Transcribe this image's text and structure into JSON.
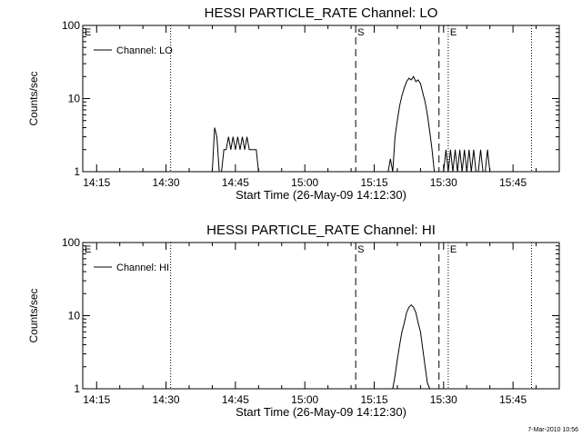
{
  "footer": {
    "date": "7-Mar-2010 10:56"
  },
  "chart_data": [
    {
      "type": "line",
      "title": "HESSI PARTICLE_RATE Channel: LO",
      "xlabel": "Start Time (26-May-09 14:12:30)",
      "ylabel": "Counts/sec",
      "ylog": true,
      "ylim": [
        1,
        100
      ],
      "xlim": [
        "14:12",
        "15:55"
      ],
      "x_ticks": [
        "14:15",
        "14:30",
        "14:45",
        "15:00",
        "15:15",
        "15:30",
        "15:45"
      ],
      "y_ticks": [
        "1",
        "10",
        "100"
      ],
      "legend": {
        "placement": "top-left",
        "label": "Channel: LO"
      },
      "markers": [
        {
          "label": "E",
          "time": "14:12",
          "style": "dotted"
        },
        {
          "label": "",
          "time": "14:31",
          "style": "dotted"
        },
        {
          "label": "S",
          "time": "15:11",
          "style": "dashed"
        },
        {
          "label": "",
          "time": "15:29",
          "style": "dashed"
        },
        {
          "label": "E",
          "time": "15:31",
          "style": "dotted"
        },
        {
          "label": "",
          "time": "15:49",
          "style": "dotted"
        }
      ],
      "series": [
        {
          "name": "Channel: LO",
          "x": [
            "14:40",
            "14:40.5",
            "14:41",
            "14:41.5",
            "14:42",
            "14:42.5",
            "14:43",
            "14:43.5",
            "14:44",
            "14:44.5",
            "14:45",
            "14:45.5",
            "14:46",
            "14:46.5",
            "14:47",
            "14:47.5",
            "14:48",
            "14:48.5",
            "14:49",
            "14:49.5",
            "14:50",
            "15:18",
            "15:18.5",
            "15:19",
            "15:19.5",
            "15:20",
            "15:20.5",
            "15:21",
            "15:21.5",
            "15:22",
            "15:22.5",
            "15:23",
            "15:23.5",
            "15:24",
            "15:24.5",
            "15:25",
            "15:25.5",
            "15:26",
            "15:26.5",
            "15:27",
            "15:27.5",
            "15:28",
            "15:28.5",
            "15:30",
            "15:30.5",
            "15:31",
            "15:31.5",
            "15:32",
            "15:32.5",
            "15:33",
            "15:33.5",
            "15:34",
            "15:34.5",
            "15:35",
            "15:35.5",
            "15:36",
            "15:36.5",
            "15:37",
            "15:37.5",
            "15:38",
            "15:38.5",
            "15:39",
            "15:39.5",
            "15:40"
          ],
          "y": [
            1,
            4,
            3,
            1,
            1,
            2,
            2,
            3,
            2,
            3,
            2,
            3,
            2,
            3,
            2,
            3,
            2,
            2,
            2,
            2,
            1,
            1,
            1.5,
            1,
            3,
            5,
            8,
            11,
            14,
            17,
            19,
            18,
            20,
            17,
            18,
            16,
            12,
            9,
            6,
            3.5,
            2,
            1,
            1,
            1,
            2,
            1,
            2,
            1,
            2,
            1,
            2,
            1,
            2,
            1,
            2,
            1,
            2,
            1,
            1,
            2,
            1,
            1,
            2,
            1
          ]
        }
      ]
    },
    {
      "type": "line",
      "title": "HESSI PARTICLE_RATE Channel: HI",
      "xlabel": "Start Time (26-May-09 14:12:30)",
      "ylabel": "Counts/sec",
      "ylog": true,
      "ylim": [
        1,
        100
      ],
      "xlim": [
        "14:12",
        "15:55"
      ],
      "x_ticks": [
        "14:15",
        "14:30",
        "14:45",
        "15:00",
        "15:15",
        "15:30",
        "15:45"
      ],
      "y_ticks": [
        "1",
        "10",
        "100"
      ],
      "legend": {
        "placement": "top-left",
        "label": "Channel: HI"
      },
      "markers": [
        {
          "label": "E",
          "time": "14:12",
          "style": "dotted"
        },
        {
          "label": "",
          "time": "14:31",
          "style": "dotted"
        },
        {
          "label": "S",
          "time": "15:11",
          "style": "dashed"
        },
        {
          "label": "",
          "time": "15:29",
          "style": "dashed"
        },
        {
          "label": "E",
          "time": "15:31",
          "style": "dotted"
        },
        {
          "label": "",
          "time": "15:49",
          "style": "dotted"
        }
      ],
      "series": [
        {
          "name": "Channel: HI",
          "x": [
            "15:19",
            "15:19.5",
            "15:20",
            "15:20.5",
            "15:21",
            "15:21.5",
            "15:22",
            "15:22.5",
            "15:23",
            "15:23.5",
            "15:24",
            "15:24.5",
            "15:25",
            "15:25.5",
            "15:26",
            "15:26.5",
            "15:27"
          ],
          "y": [
            1,
            1.5,
            2.5,
            4,
            6,
            8,
            11,
            13,
            14,
            13,
            11,
            8,
            6,
            3.5,
            2,
            1.2,
            1
          ]
        }
      ]
    }
  ]
}
